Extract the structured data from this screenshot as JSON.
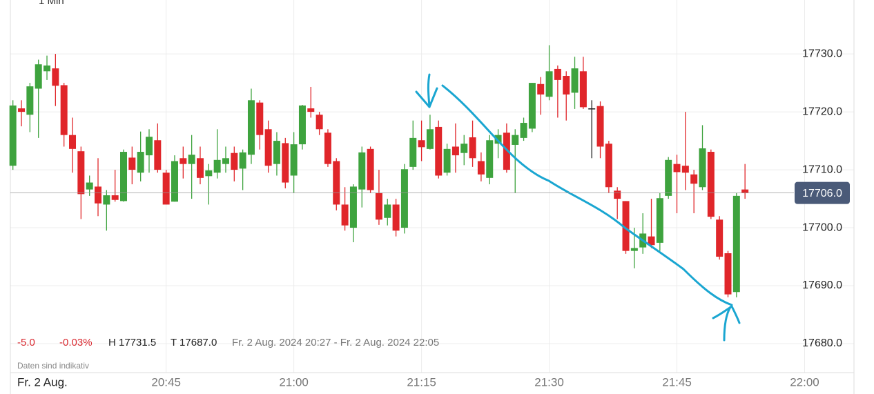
{
  "chart_data": {
    "type": "candlestick",
    "interval": "1 Min",
    "stats": {
      "change": "-5.0",
      "change_pct": "-0.03%",
      "high": "H 17731.5",
      "low": "T 17687.0",
      "range": "Fr. 2 Aug. 2024 20:27 - Fr. 2 Aug. 2024 22:05"
    },
    "note": "Daten sind indikativ",
    "date_label": "Fr. 2 Aug.",
    "colors": {
      "up": "#3ea33e",
      "down": "#e0262a",
      "flat": "#222222"
    },
    "grid": true,
    "xlim": [
      -0.3,
      98.8
    ],
    "xticks": [
      {
        "value": 18,
        "label": "20:45"
      },
      {
        "value": 33,
        "label": "21:00"
      },
      {
        "value": 48,
        "label": "21:15"
      },
      {
        "value": 63,
        "label": "21:30"
      },
      {
        "value": 78,
        "label": "21:45"
      },
      {
        "value": 93,
        "label": "22:00"
      }
    ],
    "ylim": [
      17675,
      17739.3
    ],
    "yticks": [
      {
        "value": 17680,
        "label": "17680.0"
      },
      {
        "value": 17690,
        "label": "17690.0"
      },
      {
        "value": 17700,
        "label": "17700.0"
      },
      {
        "value": 17710,
        "label": "17710.0"
      },
      {
        "value": 17720,
        "label": "17720.0"
      },
      {
        "value": 17730,
        "label": "17730.0"
      }
    ],
    "last_price": {
      "value": 17706,
      "label": "17706.0"
    },
    "open": [
      17710.7,
      17720.6,
      17719.5,
      17724,
      17727,
      17727.5,
      17724.6,
      17716,
      17713.2,
      17706.6,
      17707.1,
      17704,
      17705.6,
      17704.6,
      17712.1,
      17709.5,
      17712.5,
      17715.1,
      17709.5,
      17704.5,
      17712,
      17711,
      17712,
      17708.9,
      17709.5,
      17711,
      17712.9,
      17710.2,
      17712.6,
      17721.6,
      17717,
      17711,
      17714.6,
      17709,
      17714.4,
      17720.6,
      17719.5,
      17716.4,
      17711.5,
      17704,
      17700,
      17706.6,
      17713.6,
      17706,
      17701.7,
      17704,
      17700,
      17710.5,
      17715.1,
      17713.6,
      17717.4,
      17709.5,
      17714,
      17712.9,
      17715.6,
      17711.5,
      17708.6,
      17714.5,
      17716.4,
      17714.3,
      17715.5,
      17717.1,
      17724.8,
      17722.6,
      17727.4,
      17726.2,
      17723.3,
      17727,
      17720.6,
      17721,
      17714.5,
      17706.4,
      17704.6,
      17696,
      17696.6,
      17698.5,
      17697.4,
      17705.5,
      17711,
      17710.7,
      17709.2,
      17707,
      17713.1,
      17701.4,
      17695.6,
      17688.9,
      17706.6
    ],
    "high": [
      17722,
      17722,
      17725,
      17729,
      17729.7,
      17730,
      17725,
      17719,
      17714,
      17709,
      17712,
      17706.5,
      17710,
      17713.5,
      17714,
      17716.6,
      17717,
      17718,
      17710,
      17712.5,
      17714,
      17716,
      17714,
      17711,
      17717,
      17714,
      17714,
      17713.5,
      17724,
      17722,
      17718.5,
      17716.5,
      17715.5,
      17716.5,
      17721.2,
      17724.3,
      17720,
      17717,
      17712,
      17707,
      17707.5,
      17714,
      17714,
      17710,
      17705,
      17705,
      17711,
      17718.5,
      17718.5,
      17719.5,
      17718.5,
      17714.5,
      17718,
      17716,
      17718.5,
      17713,
      17716,
      17717,
      17718,
      17717,
      17719,
      17725,
      17726,
      17731.5,
      17728,
      17727,
      17729.5,
      17729.5,
      17722,
      17721.8,
      17715,
      17707,
      17704.6,
      17700,
      17702.5,
      17705,
      17706,
      17712.2,
      17712.6,
      17720,
      17710,
      17717.7,
      17713.5,
      17702,
      17696,
      17706,
      17711
    ],
    "low": [
      17710,
      17717.5,
      17716.5,
      17715.5,
      17725.5,
      17721,
      17714,
      17709.5,
      17701.5,
      17705.5,
      17702,
      17699.5,
      17704.5,
      17704.5,
      17707.5,
      17708,
      17709.5,
      17709.5,
      17704,
      17704.5,
      17708.5,
      17705,
      17707.5,
      17704,
      17708.5,
      17709.5,
      17708,
      17706.5,
      17711,
      17713.5,
      17709.5,
      17709,
      17706.8,
      17706,
      17713.5,
      17719,
      17716,
      17710.5,
      17703,
      17699.5,
      17697.5,
      17703.5,
      17706,
      17700.5,
      17700.4,
      17698.5,
      17699,
      17710,
      17711.5,
      17713.5,
      17708.5,
      17709,
      17709.5,
      17710.8,
      17710.5,
      17708,
      17707.5,
      17712,
      17709.5,
      17706,
      17715,
      17716.5,
      17719.5,
      17722,
      17719,
      17718.5,
      17720.5,
      17720.5,
      17712,
      17712,
      17706,
      17701.5,
      17695.5,
      17693,
      17695.5,
      17696.5,
      17696,
      17705,
      17702.5,
      17706.5,
      17702.5,
      17706.5,
      17701.5,
      17694.5,
      17688,
      17688,
      17705
    ],
    "close": [
      17721.1,
      17720,
      17724.4,
      17728.2,
      17728,
      17724.5,
      17716,
      17713.6,
      17705.8,
      17707.8,
      17704.2,
      17705.6,
      17704.8,
      17713.1,
      17710,
      17713.1,
      17715.7,
      17710,
      17704,
      17711.5,
      17711,
      17712.6,
      17708.6,
      17709.9,
      17711.7,
      17712,
      17710,
      17713,
      17722,
      17716,
      17710.7,
      17715,
      17707.8,
      17714.4,
      17721.1,
      17720,
      17717,
      17711,
      17704,
      17700.4,
      17707.1,
      17713,
      17706.5,
      17701.4,
      17704,
      17699.5,
      17710.1,
      17715.5,
      17713.9,
      17717,
      17709,
      17713.6,
      17712.5,
      17714.5,
      17712,
      17709.2,
      17715.1,
      17716,
      17710,
      17716,
      17718.1,
      17725,
      17723,
      17727,
      17725.5,
      17723,
      17727.5,
      17720.8,
      17720.6,
      17714,
      17707,
      17705,
      17696,
      17696.5,
      17699,
      17697,
      17705.1,
      17711.7,
      17709.6,
      17709.5,
      17707.6,
      17713.7,
      17701.9,
      17695,
      17688.5,
      17705.5,
      17706
    ]
  }
}
